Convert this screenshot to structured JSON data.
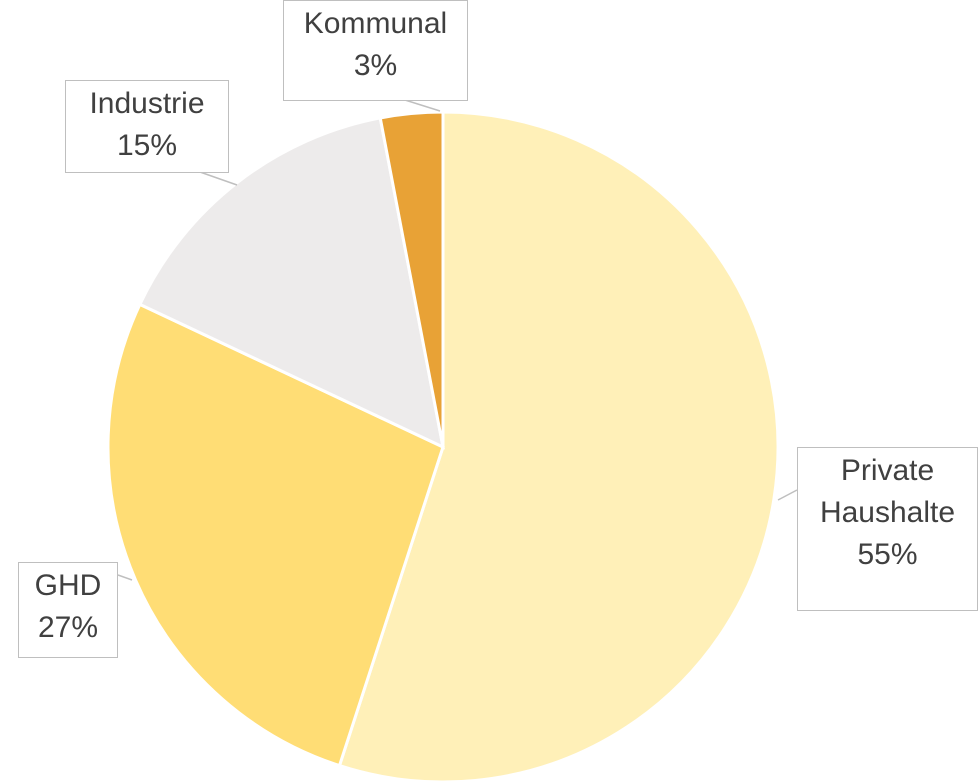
{
  "chart_data": {
    "type": "pie",
    "categories": [
      "Private Haushalte",
      "GHD",
      "Industrie",
      "Kommunal"
    ],
    "values": [
      55,
      27,
      15,
      3
    ],
    "value_labels": [
      "55%",
      "27%",
      "15%",
      "3%"
    ],
    "colors": [
      "#FFF0B8",
      "#FFDD75",
      "#EDEBEB",
      "#E8A236"
    ]
  }
}
